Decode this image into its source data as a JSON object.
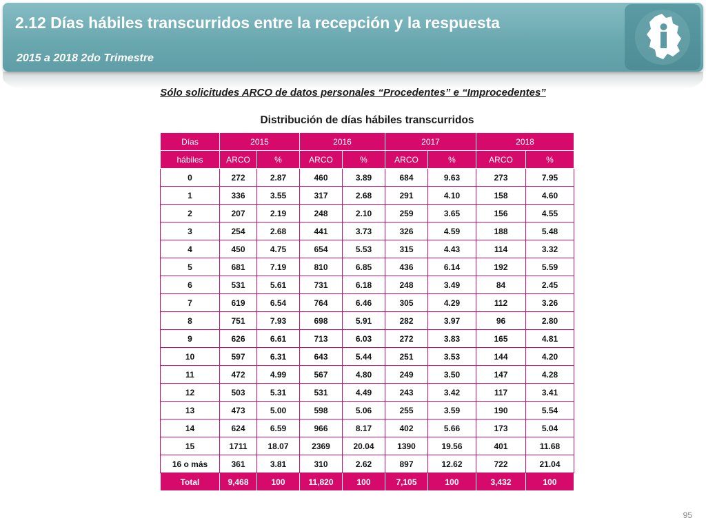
{
  "header": {
    "title": "2.12 Días hábiles transcurridos entre la recepción y la respuesta",
    "subtitle": "2015 a 2018 2do Trimestre",
    "logo_icon": "cdmx-map-icon"
  },
  "section_heading": "Sólo solicitudes ARCO de datos personales “Procedentes” e “Improcedentes”",
  "table": {
    "title": "Distribución de días hábiles transcurridos",
    "header_row1": [
      "Días",
      "2015",
      "2016",
      "2017",
      "2018"
    ],
    "header_row2": [
      "hábiles",
      "ARCO",
      "%",
      "ARCO",
      "%",
      "ARCO",
      "%",
      "ARCO",
      "%"
    ],
    "rows": [
      [
        "0",
        "272",
        "2.87",
        "460",
        "3.89",
        "684",
        "9.63",
        "273",
        "7.95"
      ],
      [
        "1",
        "336",
        "3.55",
        "317",
        "2.68",
        "291",
        "4.10",
        "158",
        "4.60"
      ],
      [
        "2",
        "207",
        "2.19",
        "248",
        "2.10",
        "259",
        "3.65",
        "156",
        "4.55"
      ],
      [
        "3",
        "254",
        "2.68",
        "441",
        "3.73",
        "326",
        "4.59",
        "188",
        "5.48"
      ],
      [
        "4",
        "450",
        "4.75",
        "654",
        "5.53",
        "315",
        "4.43",
        "114",
        "3.32"
      ],
      [
        "5",
        "681",
        "7.19",
        "810",
        "6.85",
        "436",
        "6.14",
        "192",
        "5.59"
      ],
      [
        "6",
        "531",
        "5.61",
        "731",
        "6.18",
        "248",
        "3.49",
        "84",
        "2.45"
      ],
      [
        "7",
        "619",
        "6.54",
        "764",
        "6.46",
        "305",
        "4.29",
        "112",
        "3.26"
      ],
      [
        "8",
        "751",
        "7.93",
        "698",
        "5.91",
        "282",
        "3.97",
        "96",
        "2.80"
      ],
      [
        "9",
        "626",
        "6.61",
        "713",
        "6.03",
        "272",
        "3.83",
        "165",
        "4.81"
      ],
      [
        "10",
        "597",
        "6.31",
        "643",
        "5.44",
        "251",
        "3.53",
        "144",
        "4.20"
      ],
      [
        "11",
        "472",
        "4.99",
        "567",
        "4.80",
        "249",
        "3.50",
        "147",
        "4.28"
      ],
      [
        "12",
        "503",
        "5.31",
        "531",
        "4.49",
        "243",
        "3.42",
        "117",
        "3.41"
      ],
      [
        "13",
        "473",
        "5.00",
        "598",
        "5.06",
        "255",
        "3.59",
        "190",
        "5.54"
      ],
      [
        "14",
        "624",
        "6.59",
        "966",
        "8.17",
        "402",
        "5.66",
        "173",
        "5.04"
      ],
      [
        "15",
        "1711",
        "18.07",
        "2369",
        "20.04",
        "1390",
        "19.56",
        "401",
        "11.68"
      ],
      [
        "16 o más",
        "361",
        "3.81",
        "310",
        "2.62",
        "897",
        "12.62",
        "722",
        "21.04"
      ]
    ],
    "total_row": [
      "Total",
      "9,468",
      "100",
      "11,820",
      "100",
      "7,105",
      "100",
      "3,432",
      "100"
    ]
  },
  "page_number": "95",
  "colors": {
    "banner": "#6aa8b0",
    "table_magenta": "#d60a6b"
  }
}
